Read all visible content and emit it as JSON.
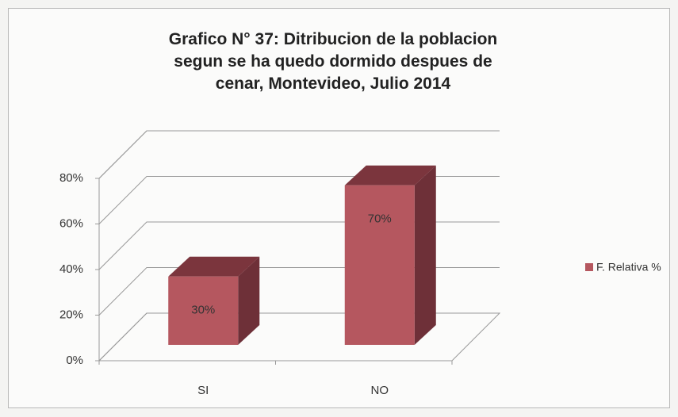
{
  "chart_data": {
    "type": "bar3d",
    "title": "Grafico N° 37: Ditribucion de la poblacion segun se ha quedo  dormido despues de cenar, Montevideo, Julio 2014",
    "categories": [
      "SI",
      "NO"
    ],
    "series": [
      {
        "name": "F. Relativa %",
        "color": "#b5575f",
        "values": [
          30,
          70
        ],
        "value_labels": [
          "30%",
          "70%"
        ]
      }
    ],
    "ylim": [
      0,
      80
    ],
    "yticks": [
      {
        "value": 0,
        "label": "0%"
      },
      {
        "value": 20,
        "label": "20%"
      },
      {
        "value": 40,
        "label": "40%"
      },
      {
        "value": 60,
        "label": "60%"
      },
      {
        "value": 80,
        "label": "80%"
      }
    ],
    "grid": true,
    "legend": "right"
  }
}
